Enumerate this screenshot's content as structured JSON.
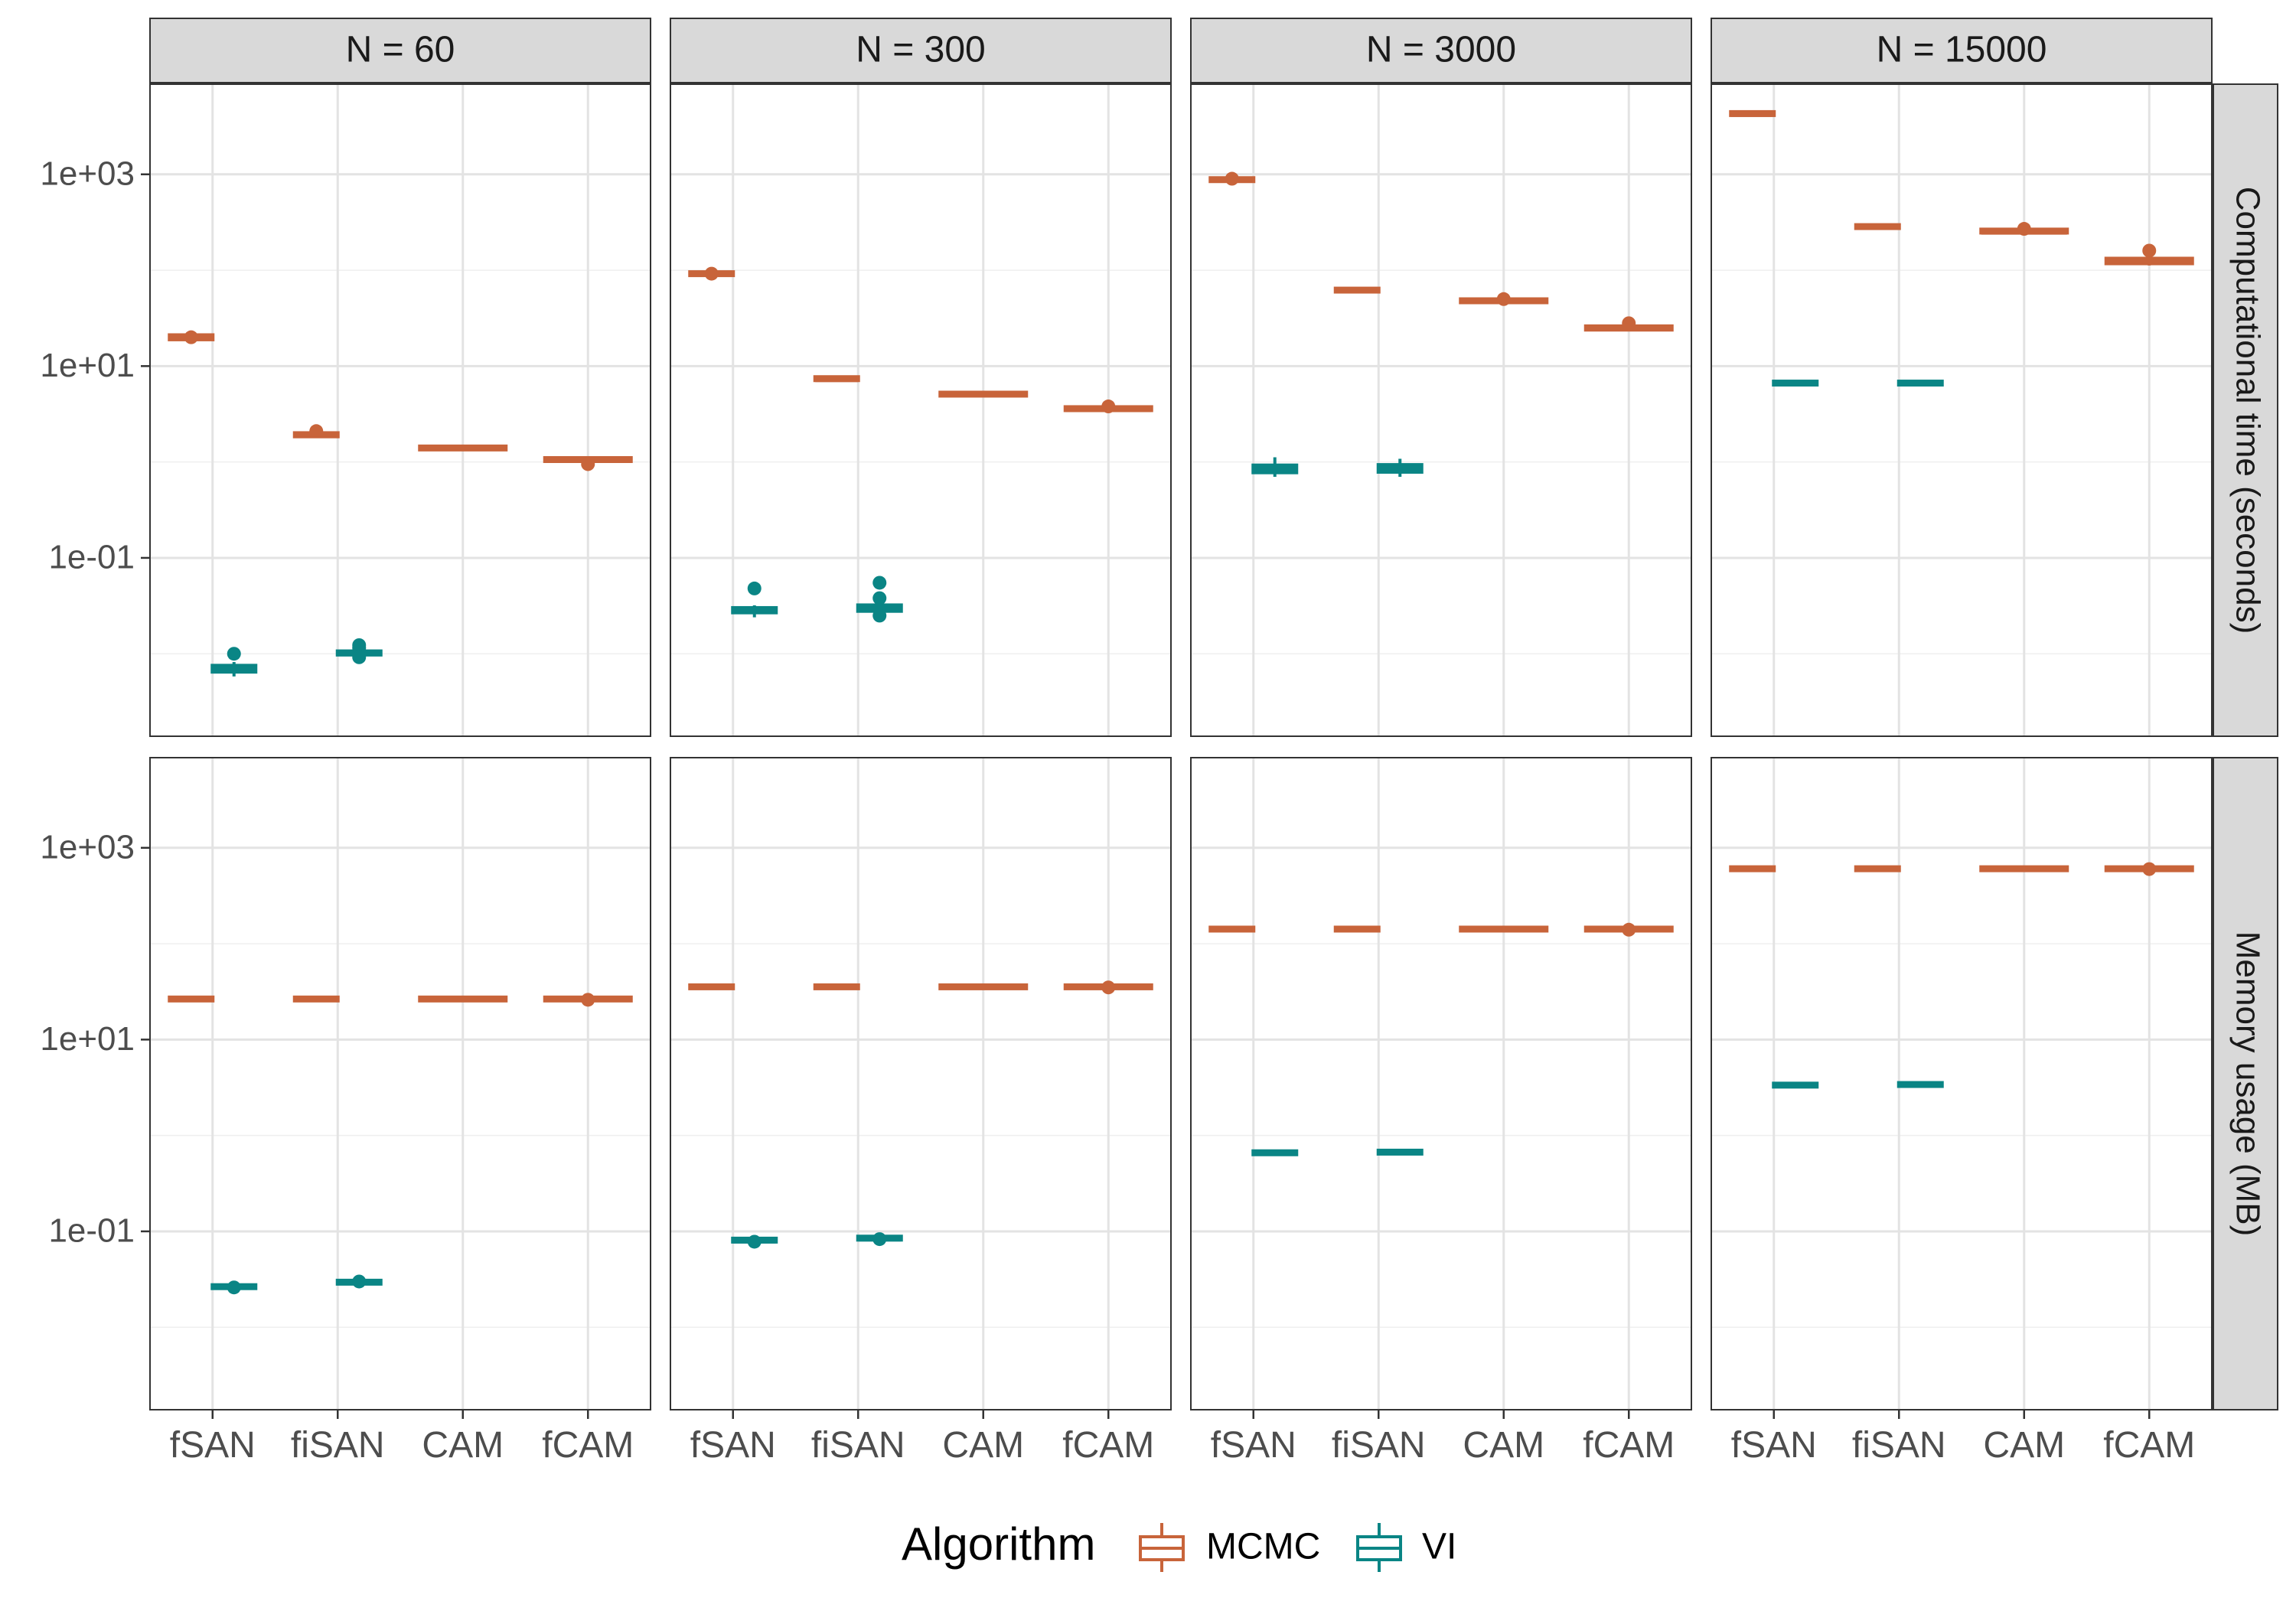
{
  "chart_data": {
    "type": "boxplot",
    "scale": "log10",
    "categories": [
      "fSAN",
      "fiSAN",
      "CAM",
      "fCAM"
    ],
    "columns": [
      "N = 60",
      "N = 300",
      "N = 3000",
      "N = 15000"
    ],
    "rows": [
      "Computational time (seconds)",
      "Memory usage (MB)"
    ],
    "y_ticks": [
      "1e-01",
      "1e+01",
      "1e+03"
    ],
    "y_tick_values": [
      0.1,
      10,
      1000
    ],
    "ylim": [
      0.00138,
      8710
    ],
    "grid": true,
    "legend": {
      "title": "Algorithm",
      "position": "bottom",
      "items": [
        {
          "name": "MCMC",
          "color": "#c8643a"
        },
        {
          "name": "VI",
          "color": "#0a8585"
        }
      ]
    },
    "series_colors": {
      "MCMC": "#c8643a",
      "VI": "#0a8585"
    },
    "boxes": [
      {
        "row": 0,
        "col": 0,
        "cat": 0,
        "alg": "MCMC",
        "q1": 19.0,
        "median": 20.0,
        "q3": 21.0,
        "whisker_low": 19.0,
        "whisker_high": 21.0,
        "outliers": [
          20.0
        ]
      },
      {
        "row": 0,
        "col": 0,
        "cat": 0,
        "alg": "VI",
        "q1": 0.0065,
        "median": 0.007,
        "q3": 0.0075,
        "whisker_low": 0.0058,
        "whisker_high": 0.0082,
        "outliers": [
          0.01
        ]
      },
      {
        "row": 0,
        "col": 0,
        "cat": 1,
        "alg": "MCMC",
        "q1": 1.85,
        "median": 1.9,
        "q3": 2.0,
        "whisker_low": 1.85,
        "whisker_high": 2.0,
        "outliers": [
          2.1
        ]
      },
      {
        "row": 0,
        "col": 0,
        "cat": 1,
        "alg": "VI",
        "q1": 0.0098,
        "median": 0.0102,
        "q3": 0.0106,
        "whisker_low": 0.0095,
        "whisker_high": 0.011,
        "outliers": [
          0.0123,
          0.0115,
          0.0092
        ]
      },
      {
        "row": 0,
        "col": 0,
        "cat": 2,
        "alg": "MCMC",
        "q1": 1.35,
        "median": 1.38,
        "q3": 1.4,
        "whisker_low": 1.35,
        "whisker_high": 1.4,
        "outliers": []
      },
      {
        "row": 0,
        "col": 0,
        "cat": 3,
        "alg": "MCMC",
        "q1": 1.0,
        "median": 1.03,
        "q3": 1.06,
        "whisker_low": 1.0,
        "whisker_high": 1.06,
        "outliers": [
          0.95
        ]
      },
      {
        "row": 0,
        "col": 1,
        "cat": 0,
        "alg": "MCMC",
        "q1": 88,
        "median": 90,
        "q3": 92,
        "whisker_low": 86,
        "whisker_high": 94,
        "outliers": [
          92
        ]
      },
      {
        "row": 0,
        "col": 1,
        "cat": 0,
        "alg": "VI",
        "q1": 0.027,
        "median": 0.028,
        "q3": 0.03,
        "whisker_low": 0.024,
        "whisker_high": 0.032,
        "outliers": [
          0.048
        ]
      },
      {
        "row": 0,
        "col": 1,
        "cat": 1,
        "alg": "MCMC",
        "q1": 7.1,
        "median": 7.2,
        "q3": 7.4,
        "whisker_low": 7.1,
        "whisker_high": 7.4,
        "outliers": []
      },
      {
        "row": 0,
        "col": 1,
        "cat": 1,
        "alg": "VI",
        "q1": 0.028,
        "median": 0.03,
        "q3": 0.032,
        "whisker_low": 0.026,
        "whisker_high": 0.034,
        "outliers": [
          0.055,
          0.038,
          0.025
        ]
      },
      {
        "row": 0,
        "col": 1,
        "cat": 2,
        "alg": "MCMC",
        "q1": 4.9,
        "median": 5.0,
        "q3": 5.1,
        "whisker_low": 4.9,
        "whisker_high": 5.1,
        "outliers": []
      },
      {
        "row": 0,
        "col": 1,
        "cat": 3,
        "alg": "MCMC",
        "q1": 3.4,
        "median": 3.5,
        "q3": 3.6,
        "whisker_low": 3.4,
        "whisker_high": 3.6,
        "outliers": [
          3.8
        ]
      },
      {
        "row": 0,
        "col": 2,
        "cat": 0,
        "alg": "MCMC",
        "q1": 840,
        "median": 860,
        "q3": 880,
        "whisker_low": 820,
        "whisker_high": 900,
        "outliers": [
          900
        ]
      },
      {
        "row": 0,
        "col": 2,
        "cat": 0,
        "alg": "VI",
        "q1": 0.78,
        "median": 0.85,
        "q3": 0.92,
        "whisker_low": 0.7,
        "whisker_high": 1.12,
        "outliers": []
      },
      {
        "row": 0,
        "col": 2,
        "cat": 1,
        "alg": "MCMC",
        "q1": 60,
        "median": 61,
        "q3": 62,
        "whisker_low": 60,
        "whisker_high": 62,
        "outliers": []
      },
      {
        "row": 0,
        "col": 2,
        "cat": 1,
        "alg": "VI",
        "q1": 0.79,
        "median": 0.86,
        "q3": 0.93,
        "whisker_low": 0.7,
        "whisker_high": 1.08,
        "outliers": []
      },
      {
        "row": 0,
        "col": 2,
        "cat": 2,
        "alg": "MCMC",
        "q1": 46,
        "median": 47,
        "q3": 48,
        "whisker_low": 46,
        "whisker_high": 48,
        "outliers": [
          50
        ]
      },
      {
        "row": 0,
        "col": 2,
        "cat": 3,
        "alg": "MCMC",
        "q1": 24,
        "median": 25,
        "q3": 26,
        "whisker_low": 24,
        "whisker_high": 26,
        "outliers": [
          28
        ]
      },
      {
        "row": 0,
        "col": 3,
        "cat": 0,
        "alg": "MCMC",
        "q1": 4100,
        "median": 4200,
        "q3": 4300,
        "whisker_low": 4100,
        "whisker_high": 4300,
        "outliers": []
      },
      {
        "row": 0,
        "col": 3,
        "cat": 0,
        "alg": "VI",
        "q1": 6.35,
        "median": 6.5,
        "q3": 6.65,
        "whisker_low": 6.35,
        "whisker_high": 6.65,
        "outliers": []
      },
      {
        "row": 0,
        "col": 3,
        "cat": 1,
        "alg": "MCMC",
        "q1": 275,
        "median": 280,
        "q3": 285,
        "whisker_low": 275,
        "whisker_high": 285,
        "outliers": []
      },
      {
        "row": 0,
        "col": 3,
        "cat": 1,
        "alg": "VI",
        "q1": 6.35,
        "median": 6.5,
        "q3": 6.65,
        "whisker_low": 6.35,
        "whisker_high": 6.65,
        "outliers": []
      },
      {
        "row": 0,
        "col": 3,
        "cat": 2,
        "alg": "MCMC",
        "q1": 240,
        "median": 248,
        "q3": 256,
        "whisker_low": 235,
        "whisker_high": 262,
        "outliers": [
          270
        ]
      },
      {
        "row": 0,
        "col": 3,
        "cat": 3,
        "alg": "MCMC",
        "q1": 118,
        "median": 125,
        "q3": 132,
        "whisker_low": 112,
        "whisker_high": 138,
        "outliers": [
          160
        ]
      },
      {
        "row": 1,
        "col": 0,
        "cat": 0,
        "alg": "MCMC",
        "q1": 25.5,
        "median": 26,
        "q3": 26.5,
        "whisker_low": 25.5,
        "whisker_high": 26.5,
        "outliers": []
      },
      {
        "row": 1,
        "col": 0,
        "cat": 0,
        "alg": "VI",
        "q1": 0.0255,
        "median": 0.026,
        "q3": 0.0265,
        "whisker_low": 0.0255,
        "whisker_high": 0.0265,
        "outliers": [
          0.026
        ]
      },
      {
        "row": 1,
        "col": 0,
        "cat": 1,
        "alg": "MCMC",
        "q1": 25.5,
        "median": 26,
        "q3": 26.5,
        "whisker_low": 25.5,
        "whisker_high": 26.5,
        "outliers": []
      },
      {
        "row": 1,
        "col": 0,
        "cat": 1,
        "alg": "VI",
        "q1": 0.0285,
        "median": 0.029,
        "q3": 0.0295,
        "whisker_low": 0.0285,
        "whisker_high": 0.0295,
        "outliers": [
          0.03
        ]
      },
      {
        "row": 1,
        "col": 0,
        "cat": 2,
        "alg": "MCMC",
        "q1": 25.5,
        "median": 26,
        "q3": 26.5,
        "whisker_low": 25.5,
        "whisker_high": 26.5,
        "outliers": []
      },
      {
        "row": 1,
        "col": 0,
        "cat": 3,
        "alg": "MCMC",
        "q1": 25.5,
        "median": 26,
        "q3": 26.5,
        "whisker_low": 25.5,
        "whisker_high": 26.5,
        "outliers": [
          26
        ]
      },
      {
        "row": 1,
        "col": 1,
        "cat": 0,
        "alg": "MCMC",
        "q1": 34.5,
        "median": 35,
        "q3": 35.5,
        "whisker_low": 34.5,
        "whisker_high": 35.5,
        "outliers": []
      },
      {
        "row": 1,
        "col": 1,
        "cat": 0,
        "alg": "VI",
        "q1": 0.077,
        "median": 0.079,
        "q3": 0.081,
        "whisker_low": 0.077,
        "whisker_high": 0.081,
        "outliers": [
          0.078
        ]
      },
      {
        "row": 1,
        "col": 1,
        "cat": 1,
        "alg": "MCMC",
        "q1": 34.5,
        "median": 35,
        "q3": 35.5,
        "whisker_low": 34.5,
        "whisker_high": 35.5,
        "outliers": []
      },
      {
        "row": 1,
        "col": 1,
        "cat": 1,
        "alg": "VI",
        "q1": 0.081,
        "median": 0.083,
        "q3": 0.085,
        "whisker_low": 0.081,
        "whisker_high": 0.085,
        "outliers": [
          0.083
        ]
      },
      {
        "row": 1,
        "col": 1,
        "cat": 2,
        "alg": "MCMC",
        "q1": 34.5,
        "median": 35,
        "q3": 35.5,
        "whisker_low": 34.5,
        "whisker_high": 35.5,
        "outliers": []
      },
      {
        "row": 1,
        "col": 1,
        "cat": 3,
        "alg": "MCMC",
        "q1": 34.5,
        "median": 35,
        "q3": 35.5,
        "whisker_low": 34.5,
        "whisker_high": 35.5,
        "outliers": [
          35
        ]
      },
      {
        "row": 1,
        "col": 2,
        "cat": 0,
        "alg": "MCMC",
        "q1": 138,
        "median": 140,
        "q3": 142,
        "whisker_low": 138,
        "whisker_high": 142,
        "outliers": []
      },
      {
        "row": 1,
        "col": 2,
        "cat": 0,
        "alg": "VI",
        "q1": 0.64,
        "median": 0.65,
        "q3": 0.66,
        "whisker_low": 0.64,
        "whisker_high": 0.66,
        "outliers": []
      },
      {
        "row": 1,
        "col": 2,
        "cat": 1,
        "alg": "MCMC",
        "q1": 138,
        "median": 140,
        "q3": 142,
        "whisker_low": 138,
        "whisker_high": 142,
        "outliers": []
      },
      {
        "row": 1,
        "col": 2,
        "cat": 1,
        "alg": "VI",
        "q1": 0.65,
        "median": 0.66,
        "q3": 0.67,
        "whisker_low": 0.65,
        "whisker_high": 0.67,
        "outliers": []
      },
      {
        "row": 1,
        "col": 2,
        "cat": 2,
        "alg": "MCMC",
        "q1": 138,
        "median": 140,
        "q3": 142,
        "whisker_low": 138,
        "whisker_high": 142,
        "outliers": []
      },
      {
        "row": 1,
        "col": 2,
        "cat": 3,
        "alg": "MCMC",
        "q1": 138,
        "median": 140,
        "q3": 142,
        "whisker_low": 138,
        "whisker_high": 142,
        "outliers": [
          140
        ]
      },
      {
        "row": 1,
        "col": 3,
        "cat": 0,
        "alg": "MCMC",
        "q1": 595,
        "median": 600,
        "q3": 605,
        "whisker_low": 595,
        "whisker_high": 605,
        "outliers": []
      },
      {
        "row": 1,
        "col": 3,
        "cat": 0,
        "alg": "VI",
        "q1": 3.25,
        "median": 3.3,
        "q3": 3.35,
        "whisker_low": 3.25,
        "whisker_high": 3.35,
        "outliers": []
      },
      {
        "row": 1,
        "col": 3,
        "cat": 1,
        "alg": "MCMC",
        "q1": 595,
        "median": 600,
        "q3": 605,
        "whisker_low": 595,
        "whisker_high": 605,
        "outliers": []
      },
      {
        "row": 1,
        "col": 3,
        "cat": 1,
        "alg": "VI",
        "q1": 3.3,
        "median": 3.35,
        "q3": 3.4,
        "whisker_low": 3.3,
        "whisker_high": 3.4,
        "outliers": []
      },
      {
        "row": 1,
        "col": 3,
        "cat": 2,
        "alg": "MCMC",
        "q1": 595,
        "median": 600,
        "q3": 605,
        "whisker_low": 595,
        "whisker_high": 605,
        "outliers": []
      },
      {
        "row": 1,
        "col": 3,
        "cat": 3,
        "alg": "MCMC",
        "q1": 595,
        "median": 600,
        "q3": 605,
        "whisker_low": 595,
        "whisker_high": 605,
        "outliers": [
          600
        ]
      }
    ]
  }
}
